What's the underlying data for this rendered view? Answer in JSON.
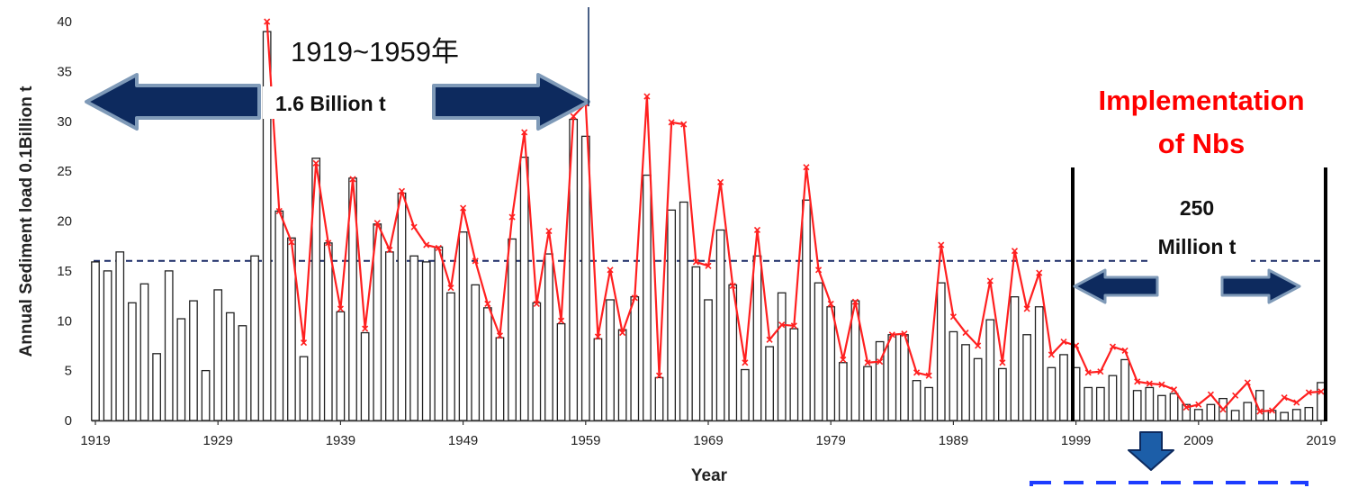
{
  "chart_data": {
    "type": "bar",
    "xlabel": "Year",
    "ylabel": "Annual Sediment load 0.1Billion t",
    "ylim": [
      0,
      40
    ],
    "xlim": [
      1919,
      2019
    ],
    "y_ticks": [
      "0",
      "5",
      "10",
      "15",
      "20",
      "25",
      "30",
      "35",
      "40"
    ],
    "x_ticks": [
      "1919",
      "1929",
      "1939",
      "1949",
      "1959",
      "1969",
      "1979",
      "1989",
      "1999",
      "2009",
      "2019"
    ],
    "grid": false,
    "reference_line": {
      "y": 16,
      "style": "dashed",
      "color": "#1a2a66"
    },
    "colors": {
      "bar_fill": "#ffffff",
      "bar_stroke": "#222222",
      "line": "#ff2020",
      "arrow": "#0d2a5e",
      "arrow_edge": "#7f9ab8",
      "annotation_red": "#ff0000",
      "ref_line": "#1a2a66"
    },
    "bars": {
      "years": [
        1919,
        1920,
        1921,
        1922,
        1923,
        1924,
        1925,
        1926,
        1927,
        1928,
        1929,
        1930,
        1931,
        1932,
        1933,
        1934,
        1935,
        1936,
        1937,
        1938,
        1939,
        1940,
        1941,
        1942,
        1943,
        1944,
        1945,
        1946,
        1947,
        1948,
        1949,
        1950,
        1951,
        1952,
        1953,
        1954,
        1955,
        1956,
        1957,
        1958,
        1959,
        1960,
        1961,
        1962,
        1963,
        1964,
        1965,
        1966,
        1967,
        1968,
        1969,
        1970,
        1971,
        1972,
        1973,
        1974,
        1975,
        1976,
        1977,
        1978,
        1979,
        1980,
        1981,
        1982,
        1983,
        1984,
        1985,
        1986,
        1987,
        1988,
        1989,
        1990,
        1991,
        1992,
        1993,
        1994,
        1995,
        1996,
        1997,
        1998,
        1999,
        2000,
        2001,
        2002,
        2003,
        2004,
        2005,
        2006,
        2007,
        2008,
        2009,
        2010,
        2011,
        2012,
        2013,
        2014,
        2015,
        2016,
        2017,
        2018,
        2019
      ],
      "values": [
        15.9,
        15,
        16.9,
        11.8,
        13.7,
        6.7,
        15,
        10.2,
        12,
        5,
        13.1,
        10.8,
        9.5,
        16.5,
        39,
        21,
        18.3,
        6.4,
        26.3,
        17.8,
        10.9,
        24.3,
        8.8,
        19.7,
        16.9,
        22.8,
        16.5,
        15.9,
        17.4,
        12.8,
        18.9,
        13.6,
        11.3,
        8.3,
        18.2,
        26.4,
        11.8,
        16.7,
        9.7,
        30.2,
        28.5,
        8.2,
        12.1,
        9.1,
        12.4,
        24.6,
        4.3,
        21.1,
        21.9,
        15.4,
        12.1,
        19.1,
        13.6,
        5.1,
        16.5,
        7.4,
        12.8,
        9.2,
        22.1,
        13.8,
        11.4,
        5.8,
        12,
        5.4,
        7.9,
        8.6,
        8.6,
        4,
        3.3,
        13.8,
        8.9,
        7.6,
        6.2,
        10.1,
        5.2,
        12.4,
        8.6,
        11.4,
        5.3,
        6.6,
        5.3,
        3.3,
        3.3,
        4.5,
        6.1,
        3,
        3.3,
        2.5,
        2.7,
        1.6,
        1.1,
        1.6,
        2.2,
        1,
        1.8,
        3,
        1,
        0.8,
        1.1,
        1.3,
        3.8
      ]
    },
    "line": {
      "years": [
        1933,
        1934,
        1935,
        1936,
        1937,
        1938,
        1939,
        1940,
        1941,
        1942,
        1943,
        1944,
        1945,
        1946,
        1947,
        1948,
        1949,
        1950,
        1951,
        1952,
        1953,
        1954,
        1955,
        1956,
        1957,
        1958,
        1959,
        1960,
        1961,
        1962,
        1963,
        1964,
        1965,
        1966,
        1967,
        1968,
        1969,
        1970,
        1971,
        1972,
        1973,
        1974,
        1975,
        1976,
        1977,
        1978,
        1979,
        1980,
        1981,
        1982,
        1983,
        1984,
        1985,
        1986,
        1987,
        1988,
        1989,
        1990,
        1991,
        1992,
        1993,
        1994,
        1995,
        1996,
        1997,
        1998,
        1999,
        2000,
        2001,
        2002,
        2003,
        2004,
        2005,
        2006,
        2007,
        2008,
        2009,
        2010,
        2011,
        2012,
        2013,
        2014,
        2015,
        2016,
        2017,
        2018,
        2019
      ],
      "values": [
        40,
        21,
        17.9,
        7.8,
        25.8,
        17.8,
        11.2,
        24.2,
        9.2,
        19.8,
        17.1,
        23,
        19.4,
        17.6,
        17.3,
        13.3,
        21.3,
        16,
        11.7,
        8.5,
        20.4,
        28.9,
        11.7,
        19,
        10,
        30.5,
        31.8,
        8.4,
        15.1,
        8.8,
        12.3,
        32.5,
        4.5,
        29.9,
        29.7,
        15.9,
        15.5,
        23.9,
        13.5,
        5.8,
        19.1,
        8.1,
        9.6,
        9.5,
        25.4,
        15.1,
        11.7,
        6.1,
        11.9,
        5.8,
        5.9,
        8.6,
        8.7,
        4.8,
        4.5,
        17.6,
        10.4,
        8.8,
        7.5,
        14,
        5.8,
        17,
        11.2,
        14.8,
        6.6,
        7.9,
        7.5,
        4.8,
        4.9,
        7.4,
        7,
        3.9,
        3.7,
        3.6,
        3.1,
        1.3,
        1.6,
        2.6,
        1.1,
        2.5,
        3.8,
        0.9,
        1,
        2.3,
        1.8,
        2.8,
        2.9
      ]
    }
  },
  "annotations": {
    "period1_label": "1919~1959年",
    "period1_value": "1.6 Billion t",
    "nbs_line1": "Implementation",
    "nbs_line2": "of Nbs",
    "period2_value_line1": "250",
    "period2_value_line2": "Million t"
  }
}
